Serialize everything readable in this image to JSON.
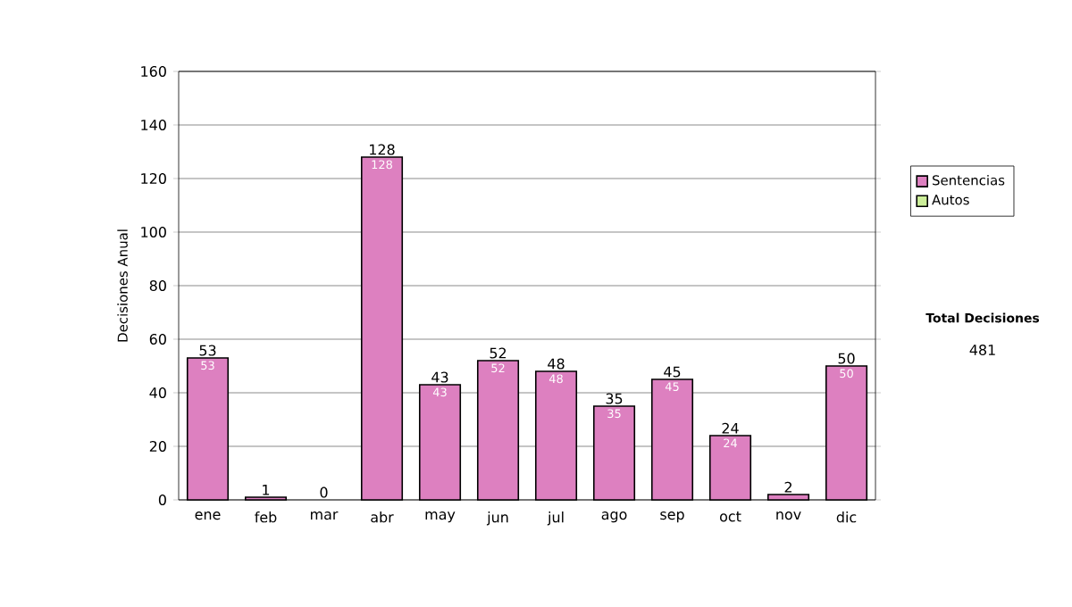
{
  "chart_data": {
    "type": "bar",
    "stacked": true,
    "ylabel": "Decisiones Anual",
    "categories": [
      "ene",
      "feb",
      "mar",
      "abr",
      "may",
      "jun",
      "jul",
      "ago",
      "sep",
      "oct",
      "nov",
      "dic"
    ],
    "series": [
      {
        "name": "Sentencias",
        "color": "#dd80c0",
        "values": [
          53,
          1,
          0,
          128,
          43,
          52,
          48,
          35,
          45,
          24,
          2,
          50
        ],
        "value_labels": [
          "53",
          null,
          null,
          "128",
          "43",
          "52",
          "48",
          "35",
          "45",
          "24",
          null,
          "50"
        ]
      },
      {
        "name": "Autos",
        "color": "#ccee99",
        "values": [
          0,
          0,
          0,
          0,
          0,
          0,
          0,
          0,
          0,
          0,
          0,
          0
        ]
      }
    ],
    "totals": [
      "53",
      "1",
      "0",
      "128",
      "43",
      "52",
      "48",
      "35",
      "45",
      "24",
      "2",
      "50"
    ],
    "ylim": [
      0,
      160
    ],
    "yticks": [
      0,
      20,
      40,
      60,
      80,
      100,
      120,
      140,
      160
    ],
    "grid": "y",
    "legend": "right",
    "annotations": [
      "Total Decisiones",
      "481"
    ]
  }
}
